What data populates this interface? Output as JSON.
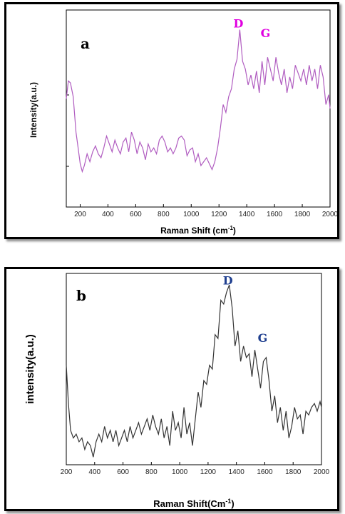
{
  "colors": {
    "panel_a_line": "#b05cc0",
    "panel_a_peak_label": "#e000e0",
    "panel_b_line": "#333333",
    "panel_b_peak_label": "#1f3f8f"
  },
  "chart_data": [
    {
      "type": "line",
      "panel": "a",
      "xlabel": "Raman Shift (cm",
      "xlabel_sup": "-1",
      "xlabel_close": ")",
      "ylabel": "Intensity(a.u.)",
      "xlim": [
        100,
        2000
      ],
      "ylim": [
        0,
        100
      ],
      "xticks": [
        "200",
        "400",
        "600",
        "800",
        "1000",
        "1200",
        "1400",
        "1600",
        "1800",
        "2000"
      ],
      "annotations": [
        {
          "text": "D",
          "x": 1340,
          "y": 89
        },
        {
          "text": "G",
          "x": 1535,
          "y": 84
        }
      ],
      "series": [
        {
          "x": [
            100,
            115,
            130,
            150,
            170,
            185,
            200,
            215,
            230,
            250,
            270,
            290,
            310,
            330,
            350,
            370,
            390,
            410,
            430,
            450,
            470,
            490,
            510,
            530,
            550,
            570,
            590,
            610,
            630,
            650,
            670,
            690,
            710,
            730,
            750,
            770,
            790,
            810,
            830,
            850,
            870,
            890,
            910,
            930,
            950,
            970,
            990,
            1010,
            1030,
            1050,
            1070,
            1090,
            1110,
            1130,
            1150,
            1170,
            1190,
            1210,
            1230,
            1250,
            1270,
            1290,
            1310,
            1330,
            1350,
            1370,
            1390,
            1410,
            1430,
            1450,
            1470,
            1490,
            1510,
            1530,
            1550,
            1570,
            1590,
            1610,
            1630,
            1650,
            1670,
            1690,
            1710,
            1730,
            1750,
            1770,
            1790,
            1810,
            1830,
            1850,
            1870,
            1890,
            1910,
            1930,
            1950,
            1970,
            1990,
            2000
          ],
          "y": [
            55,
            64,
            63,
            56,
            38,
            30,
            22,
            18,
            21,
            27,
            23,
            28,
            31,
            27,
            25,
            30,
            36,
            32,
            28,
            34,
            30,
            27,
            33,
            35,
            28,
            38,
            34,
            27,
            33,
            30,
            24,
            32,
            28,
            30,
            27,
            34,
            36,
            33,
            28,
            30,
            27,
            30,
            35,
            36,
            34,
            26,
            29,
            30,
            23,
            27,
            21,
            23,
            25,
            22,
            19,
            23,
            30,
            40,
            52,
            48,
            56,
            60,
            70,
            75,
            90,
            74,
            70,
            62,
            67,
            60,
            69,
            58,
            74,
            62,
            76,
            70,
            64,
            76,
            68,
            62,
            70,
            58,
            66,
            60,
            72,
            68,
            64,
            70,
            62,
            72,
            64,
            70,
            60,
            72,
            66,
            52,
            57,
            50
          ]
        }
      ]
    },
    {
      "type": "line",
      "panel": "b",
      "xlabel": "Raman Shift(Cm",
      "xlabel_sup": "-1",
      "xlabel_close": ")",
      "ylabel": "intensity(a.u.)",
      "xlim": [
        200,
        2000
      ],
      "ylim": [
        0,
        100
      ],
      "xticks": [
        "200",
        "400",
        "600",
        "800",
        "1000",
        "1200",
        "1400",
        "1600",
        "1800",
        "2000"
      ],
      "annotations": [
        {
          "text": "D",
          "x": 1340,
          "y": 92
        },
        {
          "text": "G",
          "x": 1585,
          "y": 62
        }
      ],
      "series": [
        {
          "x": [
            200,
            215,
            230,
            250,
            270,
            290,
            310,
            330,
            350,
            370,
            390,
            410,
            430,
            450,
            470,
            490,
            510,
            530,
            550,
            570,
            590,
            610,
            630,
            650,
            670,
            690,
            710,
            730,
            750,
            770,
            790,
            810,
            830,
            850,
            870,
            890,
            910,
            930,
            950,
            970,
            990,
            1010,
            1030,
            1050,
            1070,
            1090,
            1110,
            1130,
            1150,
            1170,
            1190,
            1210,
            1230,
            1250,
            1270,
            1290,
            1310,
            1330,
            1350,
            1370,
            1390,
            1410,
            1430,
            1450,
            1470,
            1490,
            1510,
            1530,
            1550,
            1570,
            1590,
            1610,
            1630,
            1650,
            1670,
            1690,
            1710,
            1730,
            1750,
            1770,
            1790,
            1810,
            1830,
            1850,
            1870,
            1890,
            1910,
            1930,
            1950,
            1970,
            1990,
            2000
          ],
          "y": [
            52,
            32,
            18,
            14,
            16,
            12,
            14,
            8,
            12,
            10,
            4,
            12,
            16,
            12,
            20,
            14,
            18,
            12,
            18,
            10,
            14,
            18,
            12,
            20,
            14,
            18,
            22,
            16,
            20,
            24,
            18,
            26,
            20,
            16,
            24,
            14,
            20,
            10,
            28,
            18,
            22,
            14,
            30,
            16,
            22,
            10,
            24,
            38,
            30,
            44,
            42,
            52,
            50,
            68,
            66,
            86,
            84,
            90,
            94,
            82,
            62,
            70,
            54,
            62,
            56,
            58,
            46,
            60,
            50,
            40,
            54,
            56,
            44,
            28,
            36,
            22,
            30,
            18,
            28,
            14,
            20,
            30,
            24,
            26,
            16,
            28,
            26,
            30,
            32,
            28,
            33,
            30
          ]
        }
      ]
    }
  ]
}
